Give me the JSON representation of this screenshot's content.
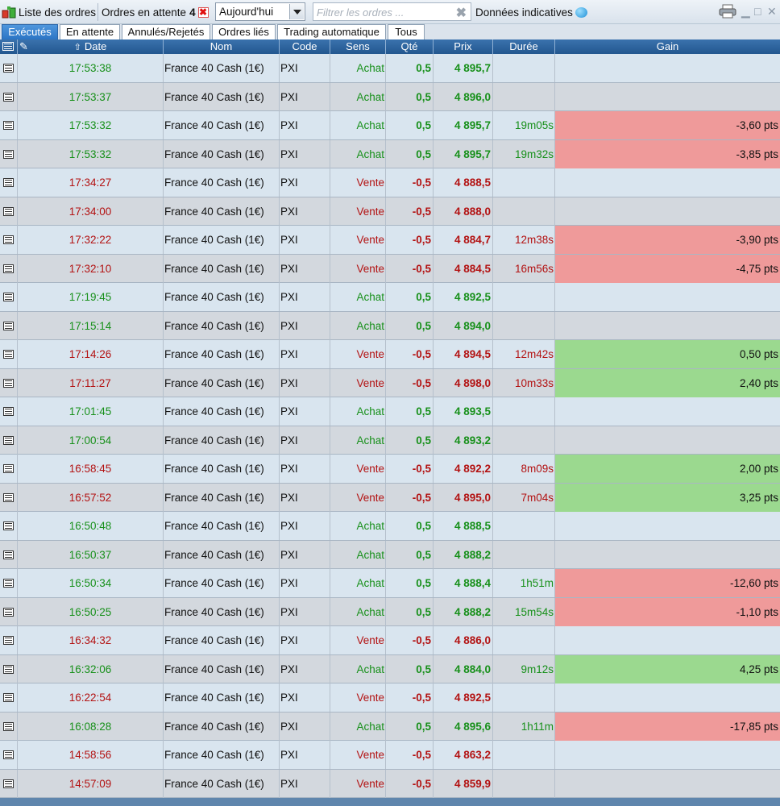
{
  "toolbar": {
    "title": "Liste des ordres",
    "pending_label": "Ordres en attente",
    "pending_count": "4",
    "period_select": "Aujourd'hui",
    "filter_placeholder": "Filtrer les ordres ...",
    "data_label": "Données indicatives"
  },
  "tabs": [
    {
      "label": "Exécutés",
      "active": true
    },
    {
      "label": "En attente"
    },
    {
      "label": "Annulés/Rejetés"
    },
    {
      "label": "Ordres liés"
    },
    {
      "label": "Trading automatique"
    },
    {
      "label": "Tous"
    }
  ],
  "columns": {
    "date": "Date",
    "nom": "Nom",
    "code": "Code",
    "sens": "Sens",
    "qte": "Qté",
    "prix": "Prix",
    "duree": "Durée",
    "gain": "Gain"
  },
  "colors": {
    "buy": "#17901a",
    "sell": "#b31212",
    "gain_negative": "#ef9a9a",
    "gain_positive": "#9bd98f",
    "header": "#2b5f97",
    "active_tab": "#3a85d2"
  },
  "rows": [
    {
      "date": "17:53:38",
      "nom": "France 40 Cash (1€)",
      "code": "PXI",
      "sens": "Achat",
      "qte": "0,5",
      "prix": "4 895,7",
      "duree": "",
      "gain": ""
    },
    {
      "date": "17:53:37",
      "nom": "France 40 Cash (1€)",
      "code": "PXI",
      "sens": "Achat",
      "qte": "0,5",
      "prix": "4 896,0",
      "duree": "",
      "gain": ""
    },
    {
      "date": "17:53:32",
      "nom": "France 40 Cash (1€)",
      "code": "PXI",
      "sens": "Achat",
      "qte": "0,5",
      "prix": "4 895,7",
      "duree": "19m05s",
      "gain": "-3,60 pts"
    },
    {
      "date": "17:53:32",
      "nom": "France 40 Cash (1€)",
      "code": "PXI",
      "sens": "Achat",
      "qte": "0,5",
      "prix": "4 895,7",
      "duree": "19m32s",
      "gain": "-3,85 pts"
    },
    {
      "date": "17:34:27",
      "nom": "France 40 Cash (1€)",
      "code": "PXI",
      "sens": "Vente",
      "qte": "-0,5",
      "prix": "4 888,5",
      "duree": "",
      "gain": ""
    },
    {
      "date": "17:34:00",
      "nom": "France 40 Cash (1€)",
      "code": "PXI",
      "sens": "Vente",
      "qte": "-0,5",
      "prix": "4 888,0",
      "duree": "",
      "gain": ""
    },
    {
      "date": "17:32:22",
      "nom": "France 40 Cash (1€)",
      "code": "PXI",
      "sens": "Vente",
      "qte": "-0,5",
      "prix": "4 884,7",
      "duree": "12m38s",
      "gain": "-3,90 pts"
    },
    {
      "date": "17:32:10",
      "nom": "France 40 Cash (1€)",
      "code": "PXI",
      "sens": "Vente",
      "qte": "-0,5",
      "prix": "4 884,5",
      "duree": "16m56s",
      "gain": "-4,75 pts"
    },
    {
      "date": "17:19:45",
      "nom": "France 40 Cash (1€)",
      "code": "PXI",
      "sens": "Achat",
      "qte": "0,5",
      "prix": "4 892,5",
      "duree": "",
      "gain": ""
    },
    {
      "date": "17:15:14",
      "nom": "France 40 Cash (1€)",
      "code": "PXI",
      "sens": "Achat",
      "qte": "0,5",
      "prix": "4 894,0",
      "duree": "",
      "gain": ""
    },
    {
      "date": "17:14:26",
      "nom": "France 40 Cash (1€)",
      "code": "PXI",
      "sens": "Vente",
      "qte": "-0,5",
      "prix": "4 894,5",
      "duree": "12m42s",
      "gain": "0,50 pts"
    },
    {
      "date": "17:11:27",
      "nom": "France 40 Cash (1€)",
      "code": "PXI",
      "sens": "Vente",
      "qte": "-0,5",
      "prix": "4 898,0",
      "duree": "10m33s",
      "gain": "2,40 pts"
    },
    {
      "date": "17:01:45",
      "nom": "France 40 Cash (1€)",
      "code": "PXI",
      "sens": "Achat",
      "qte": "0,5",
      "prix": "4 893,5",
      "duree": "",
      "gain": ""
    },
    {
      "date": "17:00:54",
      "nom": "France 40 Cash (1€)",
      "code": "PXI",
      "sens": "Achat",
      "qte": "0,5",
      "prix": "4 893,2",
      "duree": "",
      "gain": ""
    },
    {
      "date": "16:58:45",
      "nom": "France 40 Cash (1€)",
      "code": "PXI",
      "sens": "Vente",
      "qte": "-0,5",
      "prix": "4 892,2",
      "duree": "8m09s",
      "gain": "2,00 pts"
    },
    {
      "date": "16:57:52",
      "nom": "France 40 Cash (1€)",
      "code": "PXI",
      "sens": "Vente",
      "qte": "-0,5",
      "prix": "4 895,0",
      "duree": "7m04s",
      "gain": "3,25 pts"
    },
    {
      "date": "16:50:48",
      "nom": "France 40 Cash (1€)",
      "code": "PXI",
      "sens": "Achat",
      "qte": "0,5",
      "prix": "4 888,5",
      "duree": "",
      "gain": ""
    },
    {
      "date": "16:50:37",
      "nom": "France 40 Cash (1€)",
      "code": "PXI",
      "sens": "Achat",
      "qte": "0,5",
      "prix": "4 888,2",
      "duree": "",
      "gain": ""
    },
    {
      "date": "16:50:34",
      "nom": "France 40 Cash (1€)",
      "code": "PXI",
      "sens": "Achat",
      "qte": "0,5",
      "prix": "4 888,4",
      "duree": "1h51m",
      "gain": "-12,60 pts"
    },
    {
      "date": "16:50:25",
      "nom": "France 40 Cash (1€)",
      "code": "PXI",
      "sens": "Achat",
      "qte": "0,5",
      "prix": "4 888,2",
      "duree": "15m54s",
      "gain": "-1,10 pts"
    },
    {
      "date": "16:34:32",
      "nom": "France 40 Cash (1€)",
      "code": "PXI",
      "sens": "Vente",
      "qte": "-0,5",
      "prix": "4 886,0",
      "duree": "",
      "gain": ""
    },
    {
      "date": "16:32:06",
      "nom": "France 40 Cash (1€)",
      "code": "PXI",
      "sens": "Achat",
      "qte": "0,5",
      "prix": "4 884,0",
      "duree": "9m12s",
      "gain": "4,25 pts"
    },
    {
      "date": "16:22:54",
      "nom": "France 40 Cash (1€)",
      "code": "PXI",
      "sens": "Vente",
      "qte": "-0,5",
      "prix": "4 892,5",
      "duree": "",
      "gain": ""
    },
    {
      "date": "16:08:28",
      "nom": "France 40 Cash (1€)",
      "code": "PXI",
      "sens": "Achat",
      "qte": "0,5",
      "prix": "4 895,6",
      "duree": "1h11m",
      "gain": "-17,85 pts"
    },
    {
      "date": "14:58:56",
      "nom": "France 40 Cash (1€)",
      "code": "PXI",
      "sens": "Vente",
      "qte": "-0,5",
      "prix": "4 863,2",
      "duree": "",
      "gain": ""
    },
    {
      "date": "14:57:09",
      "nom": "France 40 Cash (1€)",
      "code": "PXI",
      "sens": "Vente",
      "qte": "-0,5",
      "prix": "4 859,9",
      "duree": "",
      "gain": ""
    }
  ]
}
